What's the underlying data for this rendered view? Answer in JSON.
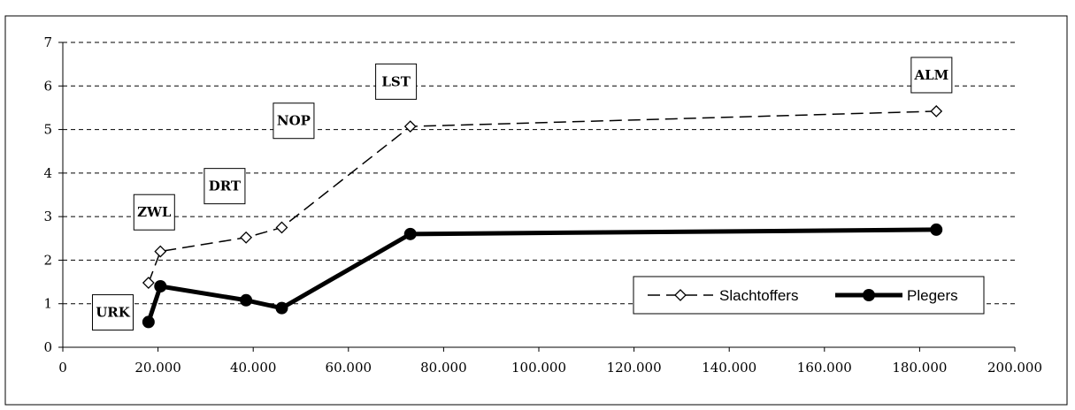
{
  "chart_data": {
    "type": "line",
    "title": "",
    "xlabel": "",
    "ylabel": "",
    "xlim": [
      0,
      200000
    ],
    "ylim": [
      0,
      7
    ],
    "x_ticks": [
      0,
      20000,
      40000,
      60000,
      80000,
      100000,
      120000,
      140000,
      160000,
      180000,
      200000
    ],
    "x_tick_labels": [
      "0",
      "20.000",
      "40.000",
      "60.000",
      "80.000",
      "100.000",
      "120.000",
      "140.000",
      "160.000",
      "180.000",
      "200.000"
    ],
    "y_ticks": [
      0,
      1,
      2,
      3,
      4,
      5,
      6,
      7
    ],
    "y_tick_labels": [
      "0",
      "1",
      "2",
      "3",
      "4",
      "5",
      "6",
      "7"
    ],
    "grid": "horizontal dashed",
    "legend_position": "bottom-right",
    "series": [
      {
        "name": "Slachtoffers",
        "style": "dashed",
        "marker": "diamond",
        "color": "#000000",
        "x": [
          18000,
          20500,
          38500,
          46000,
          73000,
          183500
        ],
        "y": [
          1.48,
          2.2,
          2.52,
          2.75,
          5.07,
          5.42
        ]
      },
      {
        "name": "Plegers",
        "style": "solid-thick",
        "marker": "circle",
        "color": "#000000",
        "x": [
          18000,
          20500,
          38500,
          46000,
          73000,
          183500
        ],
        "y": [
          0.58,
          1.4,
          1.08,
          0.9,
          2.6,
          2.7
        ]
      }
    ],
    "annotations": [
      {
        "text": "URK",
        "x": 10500,
        "y": 0.8
      },
      {
        "text": "ZWL",
        "x": 19200,
        "y": 3.1
      },
      {
        "text": "DRT",
        "x": 34000,
        "y": 3.7
      },
      {
        "text": "NOP",
        "x": 48500,
        "y": 5.2
      },
      {
        "text": "LST",
        "x": 70000,
        "y": 6.1
      },
      {
        "text": "ALM",
        "x": 182500,
        "y": 6.25
      }
    ]
  }
}
